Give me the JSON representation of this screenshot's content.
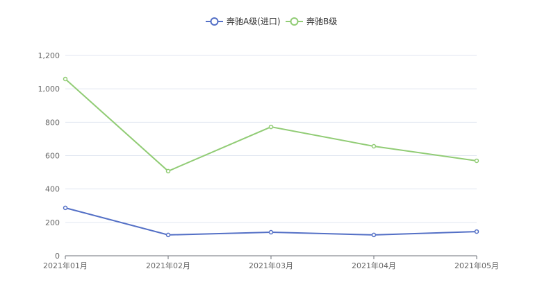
{
  "chart_data": {
    "type": "line",
    "title": "",
    "xlabel": "",
    "ylabel": "",
    "categories": [
      "2021年01月",
      "2021年02月",
      "2021年03月",
      "2021年04月",
      "2021年05月"
    ],
    "series": [
      {
        "name": "奔驰A级(进口)",
        "color": "#5470c6",
        "values": [
          287,
          125,
          141,
          125,
          145
        ]
      },
      {
        "name": "奔驰B级",
        "color": "#91cc75",
        "values": [
          1059,
          507,
          772,
          656,
          569
        ]
      }
    ],
    "ylim": [
      0,
      1200
    ],
    "yticks": [
      0,
      200,
      400,
      600,
      800,
      1000,
      1200
    ],
    "ytick_labels": [
      "0",
      "200",
      "400",
      "600",
      "800",
      "1,000",
      "1,200"
    ],
    "grid": true,
    "legend_position": "top-center"
  }
}
